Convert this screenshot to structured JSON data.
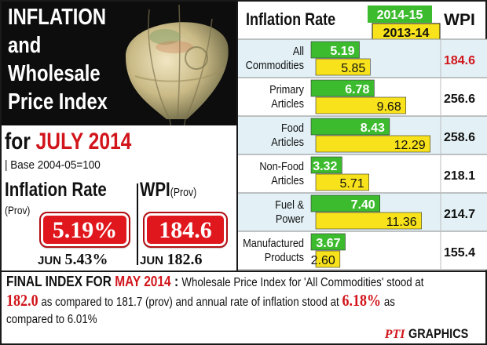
{
  "header": {
    "title_lines": [
      "INFLATION",
      "and",
      "Wholesale",
      "Price Index"
    ],
    "period_prefix": "for ",
    "period": "JULY 2014",
    "base": "| Base 2004-05=100"
  },
  "inflation_block": {
    "title": "Inflation Rate",
    "prov": "(Prov)",
    "value": "5.19%",
    "jun_label": "JUN",
    "jun_value": "5.43%"
  },
  "wpi_block": {
    "title": "WPI",
    "prov": "(Prov)",
    "value": "184.6",
    "jun_label": "JUN",
    "jun_value": "182.6"
  },
  "chart_data": {
    "type": "bar",
    "orientation": "horizontal",
    "title": "Inflation Rate",
    "wpi_header": "WPI",
    "categories": [
      [
        "All",
        "Commodities"
      ],
      [
        "Primary",
        "Articles"
      ],
      [
        "Food",
        "Articles"
      ],
      [
        "Non-Food",
        "Articles"
      ],
      [
        "Fuel &",
        "Power"
      ],
      [
        "Manufactured",
        "Products"
      ]
    ],
    "series": [
      {
        "name": "2014-15",
        "values": [
          5.19,
          6.78,
          8.43,
          3.32,
          7.4,
          3.67
        ],
        "labels": [
          "5.19",
          "6.78",
          "8.43",
          "3.32",
          "7.40",
          "3.67"
        ],
        "color": "#3dbb2f"
      },
      {
        "name": "2013-14",
        "values": [
          5.85,
          9.68,
          12.29,
          5.71,
          11.36,
          2.6
        ],
        "labels": [
          "5.85",
          "9.68",
          "12.29",
          "5.71",
          "11.36",
          "2.60"
        ],
        "color": "#f7e21b"
      }
    ],
    "wpi": [
      "184.6",
      "256.6",
      "258.6",
      "218.1",
      "214.7",
      "155.4"
    ],
    "wpi_highlight_color": "#d1151b",
    "xlim": [
      0,
      13.5
    ],
    "row_colors": [
      "#e3f1f6",
      "#ffffff"
    ]
  },
  "footnote": {
    "label_prefix": "FINAL INDEX FOR ",
    "label_month": "MAY 2014",
    "label_colon": " : ",
    "line1_text": "Wholesale Price Index for 'All Commodities' stood at",
    "value_wpi": "182.0",
    "line2_mid": " as compared to 181.7 (prov) and annual rate of inflation stood at ",
    "value_inf": "6.18%",
    "line2_end": " as",
    "line3": "compared to 6.01%"
  },
  "credit": {
    "mark": "PTI",
    "text": "GRAPHICS"
  },
  "colors": {
    "accent_red": "#d1151b",
    "bar_green": "#3dbb2f",
    "bar_yellow": "#f7e21b"
  }
}
